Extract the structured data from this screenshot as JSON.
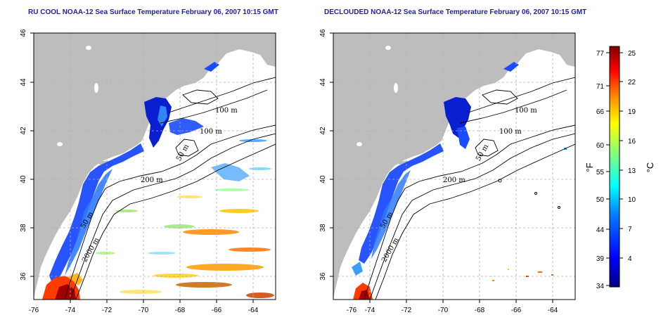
{
  "panels": [
    {
      "title": "RU COOL NOAA-12 Sea Surface Temperature February 06, 2007 10:15 GMT",
      "x_ticks": [
        "-76",
        "-74",
        "-72",
        "-70",
        "-68",
        "-66",
        "-64"
      ],
      "y_ticks": [
        "46",
        "44",
        "42",
        "40",
        "38",
        "36"
      ],
      "contour_labels": [
        "100 m",
        "100 m",
        "50 m",
        "200 m",
        "50 m",
        "2000 m"
      ]
    },
    {
      "title": "DECLOUDED NOAA-12 Sea Surface Temperature February 06, 2007 10:15 GMT",
      "x_ticks": [
        "-76",
        "-74",
        "-72",
        "-70",
        "-68",
        "-66",
        "-64"
      ],
      "y_ticks": [
        "46",
        "44",
        "42",
        "40",
        "38",
        "36"
      ],
      "contour_labels": [
        "100 m",
        "100 m",
        "50 m",
        "200 m",
        "50 m",
        "2000 m"
      ]
    }
  ],
  "colorbar": {
    "fahrenheit_ticks": [
      "77",
      "71",
      "66",
      "60",
      "55",
      "50",
      "44",
      "39",
      "34"
    ],
    "celsius_ticks": [
      "25",
      "22",
      "19",
      "16",
      "13",
      "10",
      "7",
      "4"
    ],
    "fahrenheit_label": "°F",
    "celsius_label": "°C",
    "colors": [
      "#00007f",
      "#0000ff",
      "#007fff",
      "#00ffff",
      "#7fff7f",
      "#ffff00",
      "#ff7f00",
      "#ff0000",
      "#7f0000"
    ]
  },
  "colors": {
    "land": "#bdbdbd",
    "title": "#1f1fa8",
    "grid": "#b0b0b0"
  }
}
